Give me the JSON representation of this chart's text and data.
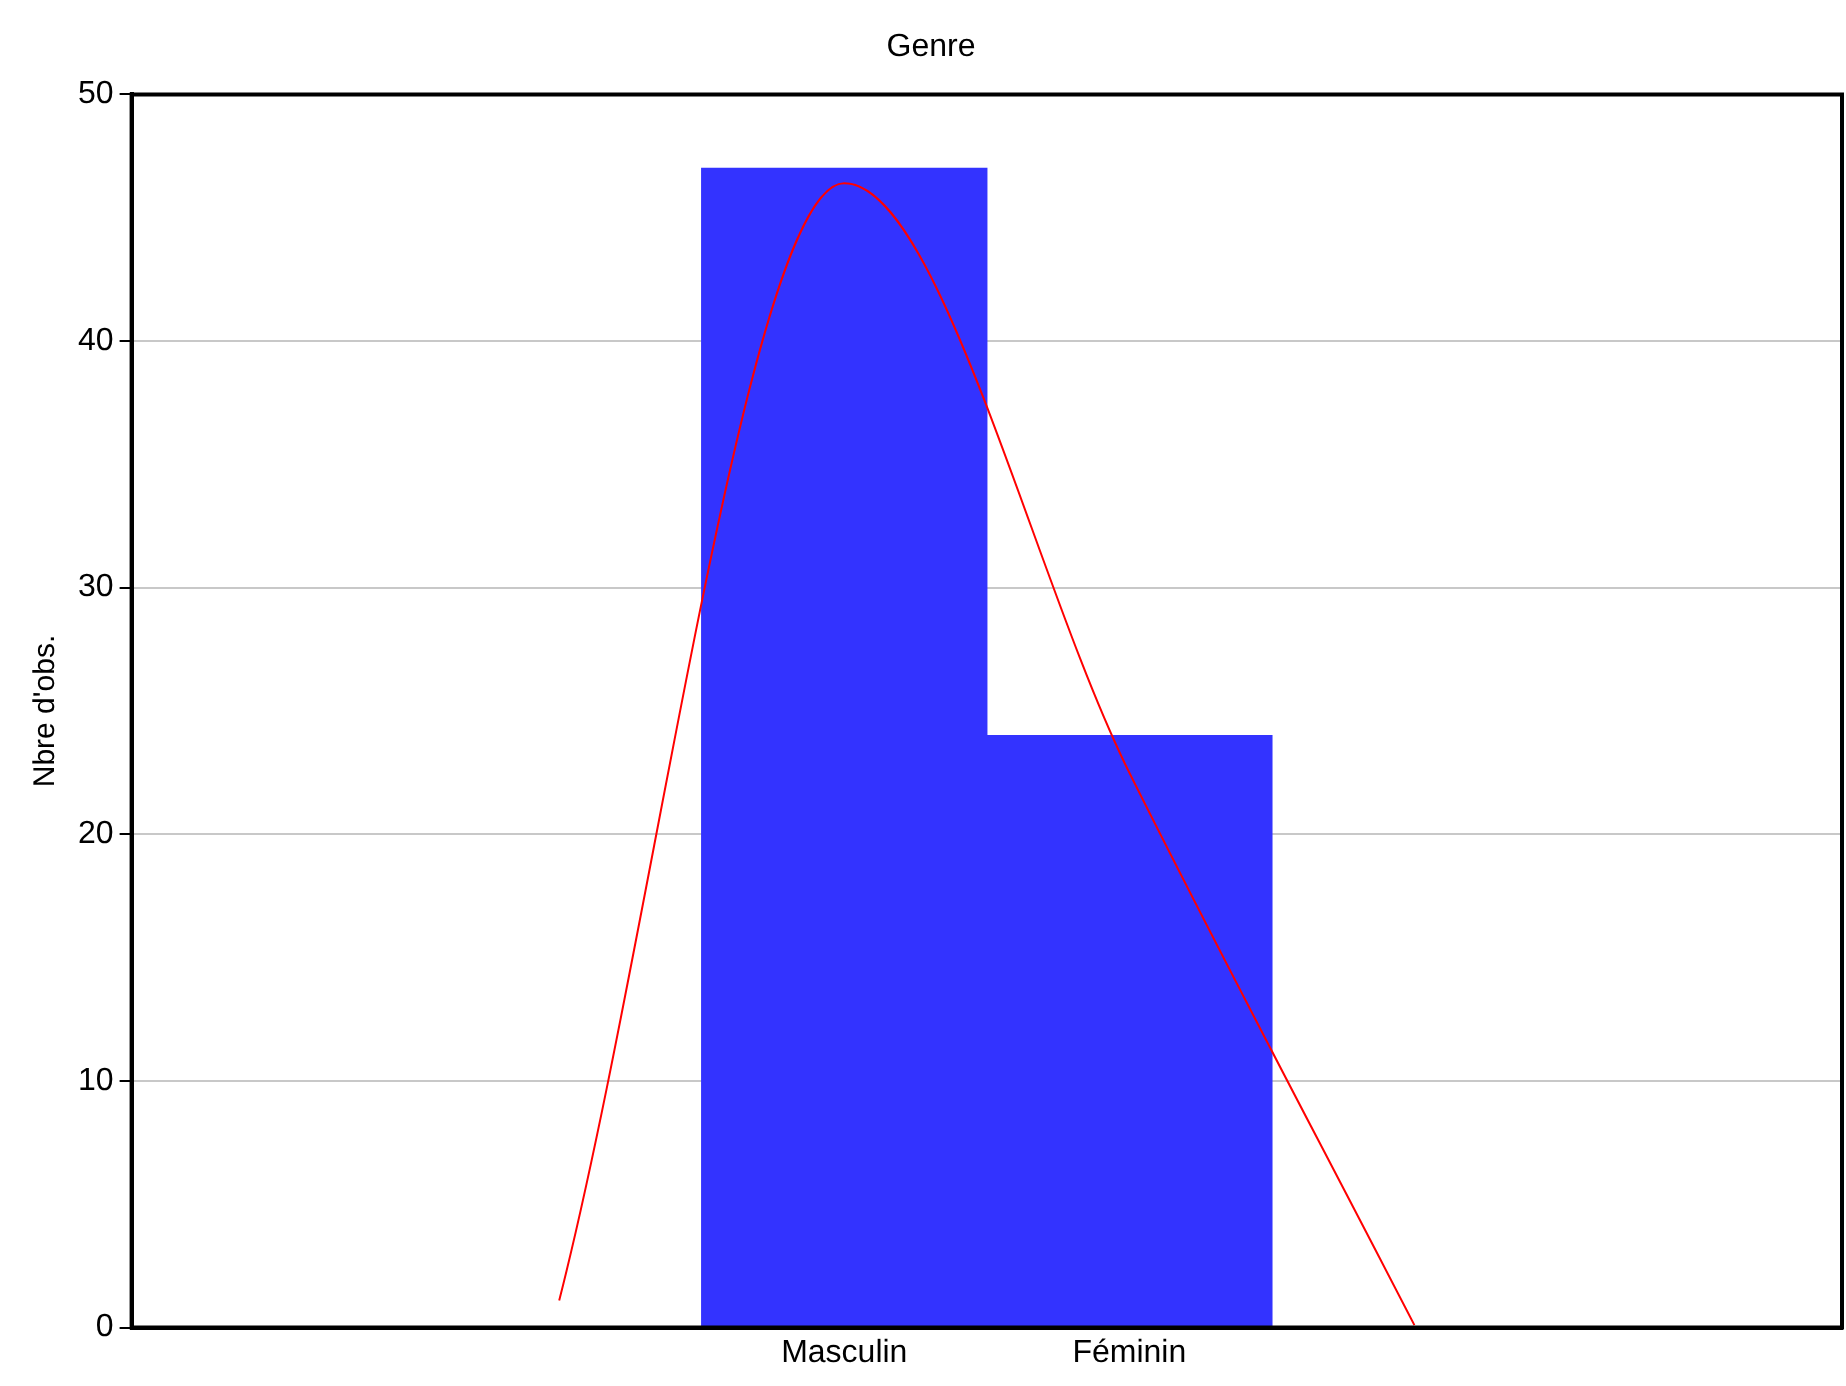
{
  "chart_data": {
    "type": "bar",
    "title": "Genre",
    "ylabel": "Nbre d'obs.",
    "categories": [
      null,
      null,
      "Masculin",
      "Féminin",
      null,
      null
    ],
    "values": [
      null,
      null,
      47,
      24,
      null,
      null
    ],
    "color": "#3333ff",
    "ylim": [
      0,
      50
    ],
    "yticks": [
      0,
      10,
      20,
      30,
      40,
      50
    ],
    "grid": "y",
    "legend": false,
    "series": [
      {
        "type": "line",
        "color": "#ff0000",
        "marker": "none",
        "line_style": "solid",
        "values": [
          null,
          1.1,
          46.4,
          22.5,
          0.1,
          null
        ]
      }
    ]
  }
}
